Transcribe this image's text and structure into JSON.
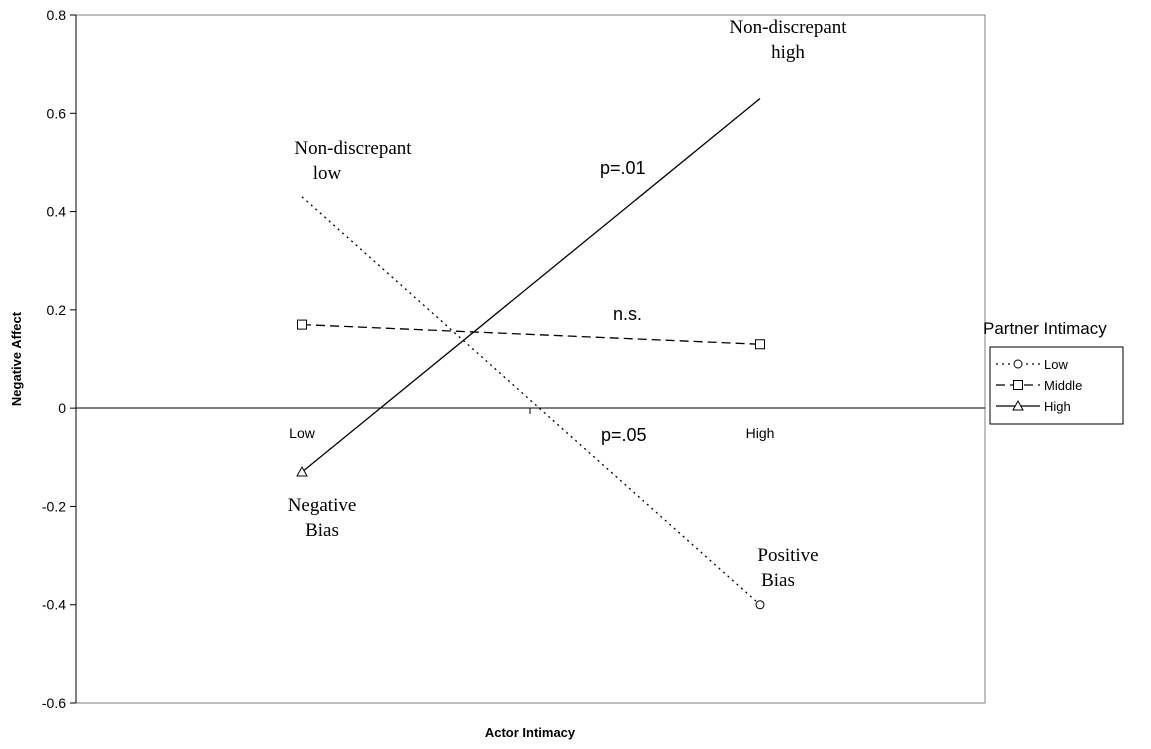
{
  "chart_data": {
    "type": "line",
    "xlabel": "Actor Intimacy",
    "ylabel": "Negative Affect",
    "categories": [
      "Low",
      "High"
    ],
    "ylim": [
      -0.6,
      0.8
    ],
    "yticks": [
      "0.8",
      "0.6",
      "0.4",
      "0.2",
      "0",
      "-0.2",
      "-0.4",
      "-0.6"
    ],
    "grid": false,
    "legend_title": "Partner Intimacy",
    "legend_position": "right",
    "series": [
      {
        "name": "Low",
        "values": [
          0.43,
          -0.4
        ],
        "style": "dotted",
        "marker": "circle",
        "color": "#000000"
      },
      {
        "name": "Middle",
        "values": [
          0.17,
          0.13
        ],
        "style": "dashed",
        "marker": "square",
        "color": "#000000"
      },
      {
        "name": "High",
        "values": [
          -0.13,
          0.63
        ],
        "style": "solid",
        "marker": "triangle",
        "color": "#000000"
      }
    ],
    "annotations": [
      {
        "id": "nd-high-1",
        "text": "Non-discrepant"
      },
      {
        "id": "nd-high-2",
        "text": "high"
      },
      {
        "id": "nd-low-1",
        "text": "Non-discrepant"
      },
      {
        "id": "nd-low-2",
        "text": "low"
      },
      {
        "id": "p01",
        "text": "p=.01"
      },
      {
        "id": "ns",
        "text": "n.s."
      },
      {
        "id": "p05",
        "text": "p=.05"
      },
      {
        "id": "neg-1",
        "text": "Negative"
      },
      {
        "id": "neg-2",
        "text": "Bias"
      },
      {
        "id": "pos-1",
        "text": "Positive"
      },
      {
        "id": "pos-2",
        "text": "Bias"
      }
    ]
  }
}
